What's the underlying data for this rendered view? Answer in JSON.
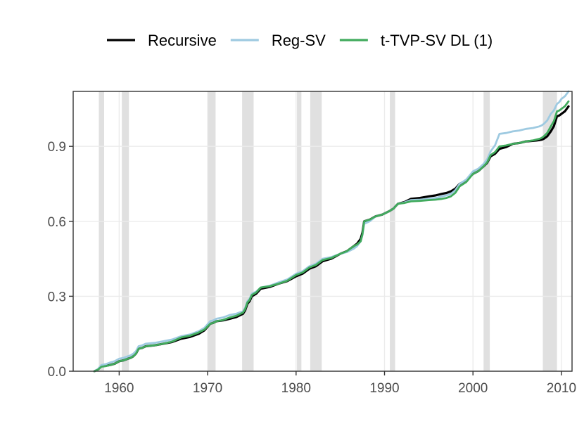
{
  "chart_data": {
    "type": "line",
    "title": "",
    "xlabel": "",
    "ylabel": "",
    "xlim": [
      1954.8,
      2011.2
    ],
    "ylim": [
      0.0,
      1.12
    ],
    "grid": true,
    "legend_position": "top",
    "x_ticks": [
      1960,
      1970,
      1980,
      1990,
      2000,
      2010
    ],
    "x_tick_labels": [
      "1960",
      "1970",
      "1980",
      "1990",
      "2000",
      "2010"
    ],
    "y_ticks": [
      0.0,
      0.3,
      0.6,
      0.9
    ],
    "y_tick_labels": [
      "0.0",
      "0.3",
      "0.6",
      "0.9"
    ],
    "shaded_periods": [
      [
        1957.7,
        1958.3
      ],
      [
        1960.3,
        1961.1
      ],
      [
        1970.0,
        1970.9
      ],
      [
        1973.9,
        1975.2
      ],
      [
        1980.1,
        1980.6
      ],
      [
        1981.6,
        1982.9
      ],
      [
        1990.6,
        1991.2
      ],
      [
        2001.2,
        2001.9
      ],
      [
        2007.9,
        2009.5
      ]
    ],
    "series": [
      {
        "name": "Recursive",
        "color": "#000000",
        "x": [
          1957.2,
          1958.0,
          1959.0,
          1960.0,
          1961.0,
          1961.6,
          1962.2,
          1963.0,
          1965.0,
          1967.0,
          1969.0,
          1970.3,
          1971.0,
          1972.5,
          1974.0,
          1974.5,
          1975.0,
          1976.0,
          1978.0,
          1980.0,
          1981.5,
          1983.0,
          1985.0,
          1986.5,
          1987.3,
          1987.7,
          1989.0,
          1990.5,
          1991.5,
          1993.0,
          1995.0,
          1996.5,
          1997.5,
          1998.5,
          2000.0,
          2001.2,
          2002.0,
          2003.0,
          2004.5,
          2006.0,
          2007.5,
          2008.0,
          2008.8,
          2009.5,
          2010.0,
          2010.8
        ],
        "values": [
          0.0,
          0.02,
          0.025,
          0.04,
          0.05,
          0.06,
          0.09,
          0.1,
          0.11,
          0.13,
          0.15,
          0.19,
          0.2,
          0.21,
          0.23,
          0.27,
          0.3,
          0.33,
          0.35,
          0.38,
          0.41,
          0.44,
          0.47,
          0.5,
          0.53,
          0.6,
          0.62,
          0.64,
          0.67,
          0.69,
          0.7,
          0.71,
          0.72,
          0.75,
          0.79,
          0.82,
          0.86,
          0.89,
          0.91,
          0.92,
          0.925,
          0.93,
          0.96,
          1.02,
          1.03,
          1.06
        ]
      },
      {
        "name": "Reg-SV",
        "color": "#9ecae1",
        "x": [
          1957.2,
          1958.0,
          1959.0,
          1960.0,
          1961.0,
          1961.6,
          1962.2,
          1963.0,
          1965.0,
          1967.0,
          1969.0,
          1970.3,
          1971.0,
          1972.5,
          1974.0,
          1974.5,
          1975.0,
          1976.0,
          1978.0,
          1980.0,
          1981.5,
          1983.0,
          1985.0,
          1986.5,
          1987.3,
          1987.7,
          1989.0,
          1990.5,
          1991.5,
          1993.0,
          1995.0,
          1996.5,
          1997.5,
          1998.5,
          2000.0,
          2001.2,
          2002.0,
          2003.0,
          2004.5,
          2006.0,
          2007.5,
          2008.0,
          2008.8,
          2009.5,
          2010.0,
          2010.8
        ],
        "values": [
          0.0,
          0.025,
          0.035,
          0.05,
          0.06,
          0.07,
          0.1,
          0.11,
          0.12,
          0.14,
          0.16,
          0.2,
          0.21,
          0.225,
          0.24,
          0.28,
          0.31,
          0.335,
          0.355,
          0.39,
          0.42,
          0.45,
          0.47,
          0.49,
          0.52,
          0.59,
          0.62,
          0.64,
          0.67,
          0.685,
          0.69,
          0.7,
          0.71,
          0.75,
          0.8,
          0.83,
          0.88,
          0.95,
          0.96,
          0.97,
          0.98,
          0.99,
          1.03,
          1.07,
          1.09,
          1.12
        ]
      },
      {
        "name": "t-TVP-SV DL (1)",
        "color": "#41ab5d",
        "x": [
          1957.2,
          1958.0,
          1959.0,
          1960.0,
          1961.0,
          1961.6,
          1962.2,
          1963.0,
          1965.0,
          1967.0,
          1969.0,
          1970.3,
          1971.0,
          1972.5,
          1974.0,
          1974.5,
          1975.0,
          1976.0,
          1978.0,
          1980.0,
          1981.5,
          1983.0,
          1985.0,
          1986.5,
          1987.3,
          1987.7,
          1989.0,
          1990.5,
          1991.5,
          1993.0,
          1995.0,
          1996.5,
          1997.5,
          1998.5,
          2000.0,
          2001.2,
          2002.0,
          2003.0,
          2004.5,
          2006.0,
          2007.5,
          2008.0,
          2008.8,
          2009.5,
          2010.0,
          2010.8
        ],
        "values": [
          0.0,
          0.018,
          0.025,
          0.04,
          0.05,
          0.06,
          0.09,
          0.1,
          0.11,
          0.135,
          0.155,
          0.19,
          0.2,
          0.215,
          0.235,
          0.275,
          0.305,
          0.335,
          0.35,
          0.385,
          0.415,
          0.445,
          0.47,
          0.5,
          0.52,
          0.6,
          0.62,
          0.64,
          0.67,
          0.68,
          0.685,
          0.69,
          0.7,
          0.74,
          0.79,
          0.82,
          0.865,
          0.9,
          0.91,
          0.92,
          0.93,
          0.94,
          0.98,
          1.04,
          1.05,
          1.08
        ]
      }
    ]
  }
}
